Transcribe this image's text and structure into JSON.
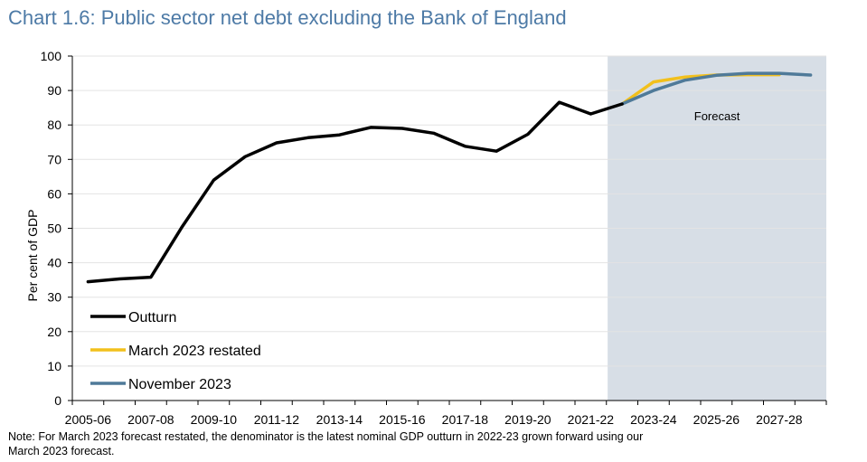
{
  "chart_title": "Chart 1.6: Public sector net debt excluding the Bank of England",
  "note": {
    "line1": "Note: For March 2023 forecast restated, the denominator is the latest nominal GDP outturn in 2022-23 grown forward using our",
    "line2": "March 2023 forecast."
  },
  "chart_data": {
    "type": "line",
    "title": "Chart 1.6: Public sector net debt excluding the Bank of England",
    "ylabel": "Per cent of GDP",
    "xlabel": "",
    "ylim": [
      0,
      100
    ],
    "yticks": [
      0,
      10,
      20,
      30,
      40,
      50,
      60,
      70,
      80,
      90,
      100
    ],
    "categories": [
      "2005-06",
      "2006-07",
      "2007-08",
      "2008-09",
      "2009-10",
      "2010-11",
      "2011-12",
      "2012-13",
      "2013-14",
      "2014-15",
      "2015-16",
      "2016-17",
      "2017-18",
      "2018-19",
      "2019-20",
      "2020-21",
      "2021-22",
      "2022-23",
      "2023-24",
      "2024-25",
      "2025-26",
      "2026-27",
      "2027-28",
      "2028-29"
    ],
    "tick_labels": [
      "2005-06",
      "2007-08",
      "2009-10",
      "2011-12",
      "2013-14",
      "2015-16",
      "2017-18",
      "2019-20",
      "2021-22",
      "2023-24",
      "2025-26",
      "2027-28"
    ],
    "forecast_region": {
      "from": "2022-23",
      "to": "2028-29",
      "label": "Forecast",
      "color": "#d7dee6"
    },
    "series": [
      {
        "name": "Outturn",
        "color": "#000000",
        "values": [
          34.5,
          35.3,
          35.8,
          50.5,
          64.0,
          70.8,
          74.8,
          76.3,
          77.1,
          79.3,
          79.0,
          77.6,
          73.8,
          72.4,
          77.3,
          86.6,
          83.2,
          86.1,
          null,
          null,
          null,
          null,
          null,
          null
        ]
      },
      {
        "name": "March 2023 restated",
        "color": "#f2c01c",
        "values": [
          null,
          null,
          null,
          null,
          null,
          null,
          null,
          null,
          null,
          null,
          null,
          null,
          null,
          null,
          null,
          null,
          null,
          86.1,
          92.5,
          93.9,
          94.5,
          94.6,
          94.6,
          null
        ]
      },
      {
        "name": "November 2023",
        "color": "#4f7a99",
        "values": [
          null,
          null,
          null,
          null,
          null,
          null,
          null,
          null,
          null,
          null,
          null,
          null,
          null,
          null,
          null,
          null,
          null,
          86.1,
          90.0,
          93.0,
          94.4,
          95.0,
          95.0,
          94.5
        ]
      }
    ],
    "legend_position": "lower-left",
    "grid": true
  }
}
